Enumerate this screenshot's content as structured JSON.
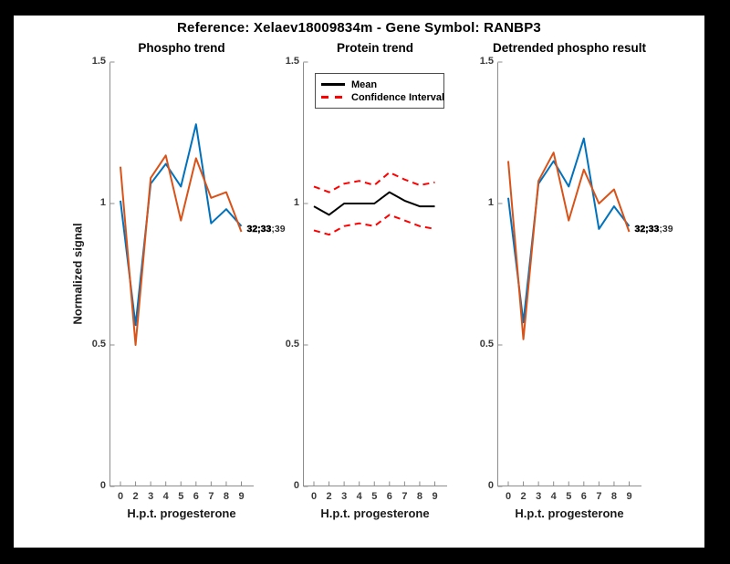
{
  "figure": {
    "title": "Reference:  Xelaev18009834m - Gene Symbol:  RANBP3"
  },
  "colors": {
    "blue": "#0072BD",
    "orange": "#D95319",
    "red": "#FF0000",
    "black": "#000000",
    "axis": "#8c8c8c",
    "tick_text": "#3a3a3a"
  },
  "axes": {
    "xlabel": "H.p.t. progesterone",
    "ylabel": "Normalized signal",
    "xticks": [
      "0",
      "2",
      "3",
      "4",
      "5",
      "6",
      "7",
      "8",
      "9"
    ],
    "yticks": [
      {
        "label": "0",
        "value": 0
      },
      {
        "label": "0.5",
        "value": 0.5
      },
      {
        "label": "1",
        "value": 1
      },
      {
        "label": "1.5",
        "value": 1.5
      }
    ]
  },
  "annotation": {
    "back_text": "32;33;39",
    "front_text": "32;33"
  },
  "legend": {
    "items": [
      {
        "label": "Mean",
        "color_key": "black",
        "style": "solid"
      },
      {
        "label": "Confidence Interval",
        "color_key": "red",
        "style": "dashed"
      }
    ]
  },
  "chart_data": [
    {
      "type": "line",
      "title": "Phospho trend",
      "xlabel": "H.p.t. progesterone",
      "ylabel": "Normalized signal",
      "ylim": [
        0,
        1.5
      ],
      "categories": [
        0,
        2,
        3,
        4,
        5,
        6,
        7,
        8,
        9
      ],
      "series": [
        {
          "name": "phospho-site-blue",
          "color_key": "blue",
          "style": "solid",
          "values": [
            1.01,
            0.57,
            1.07,
            1.14,
            1.06,
            1.28,
            0.93,
            0.98,
            0.92
          ]
        },
        {
          "name": "phospho-site-orange",
          "color_key": "orange",
          "style": "solid",
          "values": [
            1.13,
            0.5,
            1.09,
            1.17,
            0.94,
            1.16,
            1.02,
            1.04,
            0.9
          ]
        }
      ],
      "end_label": true,
      "show_ylabel": true,
      "legend": false
    },
    {
      "type": "line",
      "title": "Protein trend",
      "xlabel": "H.p.t. progesterone",
      "ylabel": "",
      "ylim": [
        0,
        1.5
      ],
      "categories": [
        0,
        2,
        3,
        4,
        5,
        6,
        7,
        8,
        9
      ],
      "series": [
        {
          "name": "mean-line",
          "color_key": "black",
          "style": "solid",
          "values": [
            0.99,
            0.96,
            1.0,
            1.0,
            1.0,
            1.04,
            1.01,
            0.99,
            0.99
          ]
        },
        {
          "name": "ci-upper",
          "color_key": "red",
          "style": "dashed",
          "values": [
            1.06,
            1.04,
            1.07,
            1.08,
            1.065,
            1.11,
            1.085,
            1.065,
            1.075
          ]
        },
        {
          "name": "ci-lower",
          "color_key": "red",
          "style": "dashed",
          "values": [
            0.905,
            0.89,
            0.92,
            0.93,
            0.92,
            0.96,
            0.94,
            0.92,
            0.91
          ]
        }
      ],
      "end_label": false,
      "show_ylabel": false,
      "legend": true
    },
    {
      "type": "line",
      "title": "Detrended phospho result",
      "xlabel": "H.p.t. progesterone",
      "ylabel": "",
      "ylim": [
        0,
        1.5
      ],
      "categories": [
        0,
        2,
        3,
        4,
        5,
        6,
        7,
        8,
        9
      ],
      "series": [
        {
          "name": "detrended-site-blue",
          "color_key": "blue",
          "style": "solid",
          "values": [
            1.02,
            0.58,
            1.07,
            1.15,
            1.06,
            1.23,
            0.91,
            0.99,
            0.92
          ]
        },
        {
          "name": "detrended-site-orange",
          "color_key": "orange",
          "style": "solid",
          "values": [
            1.15,
            0.52,
            1.08,
            1.18,
            0.94,
            1.12,
            1.0,
            1.05,
            0.9
          ]
        }
      ],
      "end_label": true,
      "show_ylabel": false,
      "legend": false
    }
  ]
}
